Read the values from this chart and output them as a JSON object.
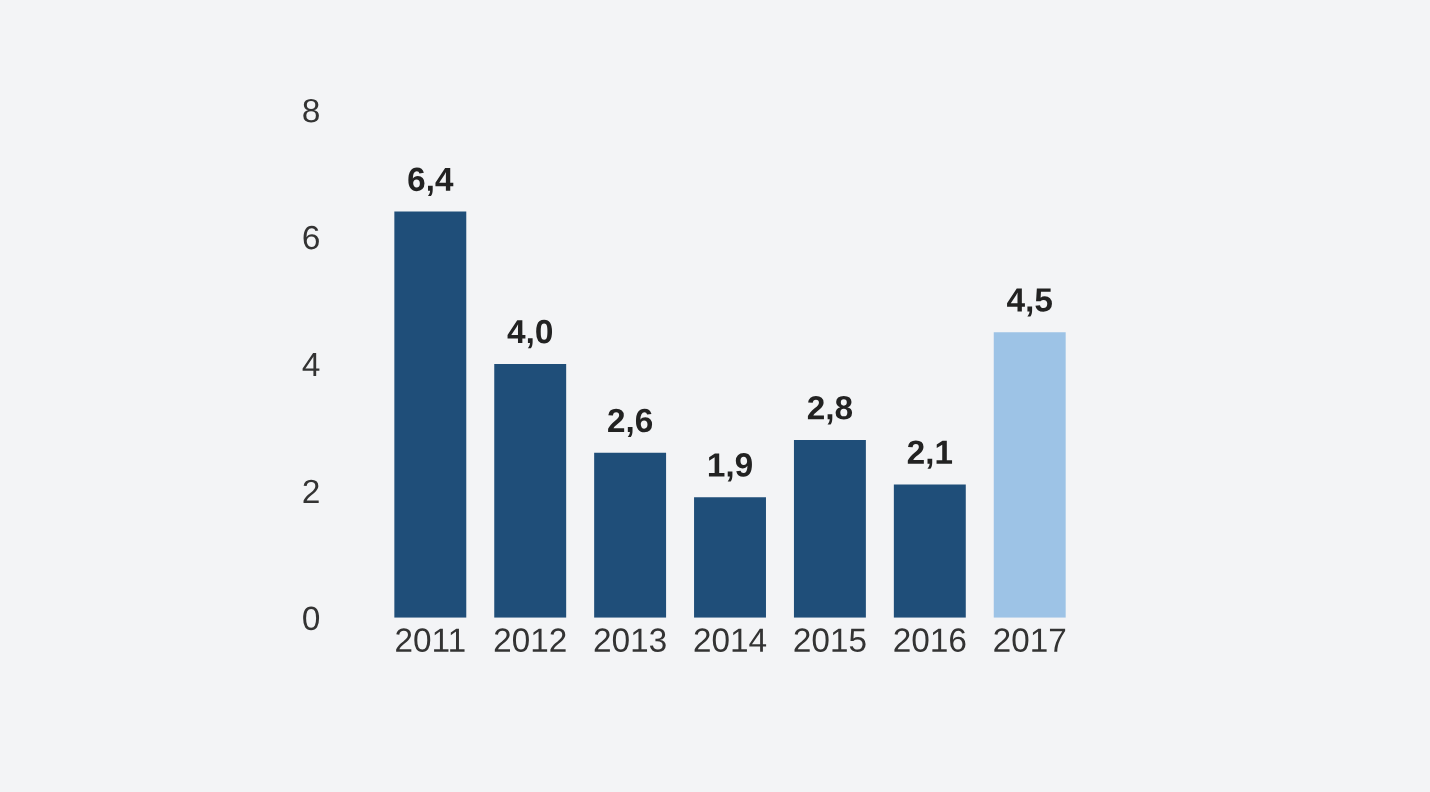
{
  "chart_data": {
    "type": "bar",
    "categories": [
      "2011",
      "2012",
      "2013",
      "2014",
      "2015",
      "2016",
      "2017"
    ],
    "values": [
      6.4,
      4.0,
      2.6,
      1.9,
      2.8,
      2.1,
      4.5
    ],
    "colors": [
      "#1f4e79",
      "#1f4e79",
      "#1f4e79",
      "#1f4e79",
      "#1f4e79",
      "#1f4e79",
      "#9dc3e6"
    ],
    "value_labels": [
      "6,4",
      "4,0",
      "2,6",
      "1,9",
      "2,8",
      "2,1",
      "4,5"
    ],
    "ylim": [
      0,
      8
    ],
    "yticks": [
      0,
      2,
      4,
      6,
      8
    ],
    "grid": false,
    "legend": false
  }
}
